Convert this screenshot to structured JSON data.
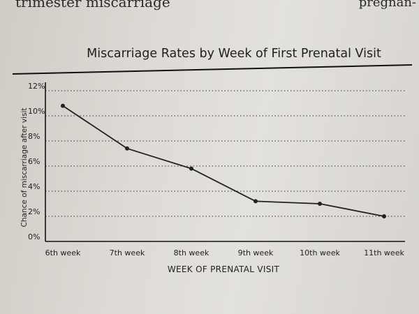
{
  "page": {
    "bleed_left_text": "trimester miscarriage",
    "bleed_right_text": "pregnan-"
  },
  "chart_data": {
    "type": "line",
    "title": "Miscarriage Rates by Week of First Prenatal Visit",
    "xlabel": "WEEK OF PRENATAL VISIT",
    "ylabel": "Chance of miscarriage after visit",
    "categories": [
      "6th week",
      "7th week",
      "8th week",
      "9th week",
      "10th week",
      "11th week"
    ],
    "values": [
      10.8,
      7.4,
      5.8,
      3.2,
      3.0,
      2.0
    ],
    "yticks": [
      "0%",
      "2%",
      "4%",
      "6%",
      "8%",
      "10%",
      "12%"
    ],
    "ylim": [
      0,
      12
    ],
    "grid": "dotted horizontal",
    "color": "#222222"
  }
}
